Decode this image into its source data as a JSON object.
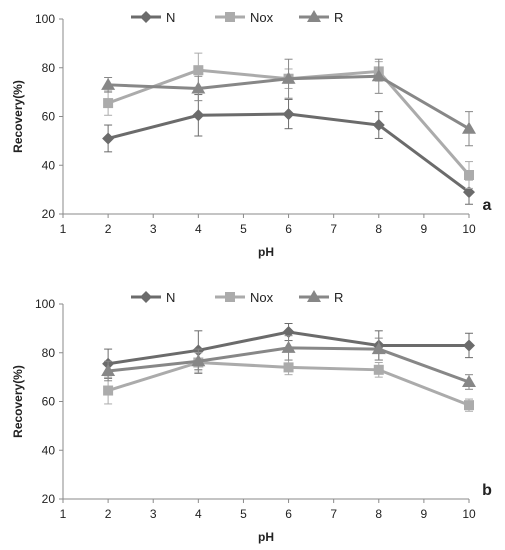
{
  "chart_data": [
    {
      "type": "line",
      "panel_label": "a",
      "xlabel": "pH",
      "ylabel": "Recovery(%)",
      "xlim": [
        1,
        10
      ],
      "ylim": [
        20,
        100
      ],
      "x_ticks": [
        "1",
        "2",
        "3",
        "4",
        "5",
        "6",
        "7",
        "8",
        "9",
        "10"
      ],
      "y_ticks": [
        "20",
        "40",
        "60",
        "80",
        "100"
      ],
      "legend_position": "top-center",
      "x": [
        2,
        4,
        6,
        8,
        10
      ],
      "series": [
        {
          "name": "N",
          "marker": "diamond",
          "color": "#6b6b6b",
          "values": [
            51,
            60.5,
            61,
            56.5,
            29
          ],
          "errors": [
            5.5,
            8.5,
            6,
            5.5,
            5
          ]
        },
        {
          "name": "Nox",
          "marker": "square",
          "color": "#ababab",
          "values": [
            65.5,
            79,
            75.5,
            78.5,
            36
          ],
          "errors": [
            5,
            7,
            4,
            4,
            5.5
          ]
        },
        {
          "name": "R",
          "marker": "triangle",
          "color": "#878787",
          "values": [
            73,
            71.5,
            75.5,
            76.5,
            55
          ],
          "errors": [
            3,
            5,
            8,
            7,
            7
          ]
        }
      ]
    },
    {
      "type": "line",
      "panel_label": "b",
      "xlabel": "pH",
      "ylabel": "Recovery(%)",
      "xlim": [
        1,
        10
      ],
      "ylim": [
        20,
        100
      ],
      "x_ticks": [
        "1",
        "2",
        "3",
        "4",
        "5",
        "6",
        "7",
        "8",
        "9",
        "10"
      ],
      "y_ticks": [
        "20",
        "40",
        "60",
        "80",
        "100"
      ],
      "legend_position": "top-center",
      "x": [
        2,
        4,
        6,
        8,
        10
      ],
      "series": [
        {
          "name": "N",
          "marker": "diamond",
          "color": "#6b6b6b",
          "values": [
            75.5,
            81,
            88.5,
            83,
            83
          ],
          "errors": [
            6,
            8,
            3.5,
            6,
            5
          ]
        },
        {
          "name": "Nox",
          "marker": "square",
          "color": "#ababab",
          "values": [
            64.5,
            76,
            74,
            73,
            58.5
          ],
          "errors": [
            5.5,
            4,
            3,
            3,
            2.5
          ]
        },
        {
          "name": "R",
          "marker": "triangle",
          "color": "#878787",
          "values": [
            72.5,
            76.5,
            82,
            81.5,
            68
          ],
          "errors": [
            4,
            5,
            5,
            4.5,
            3
          ]
        }
      ]
    }
  ]
}
